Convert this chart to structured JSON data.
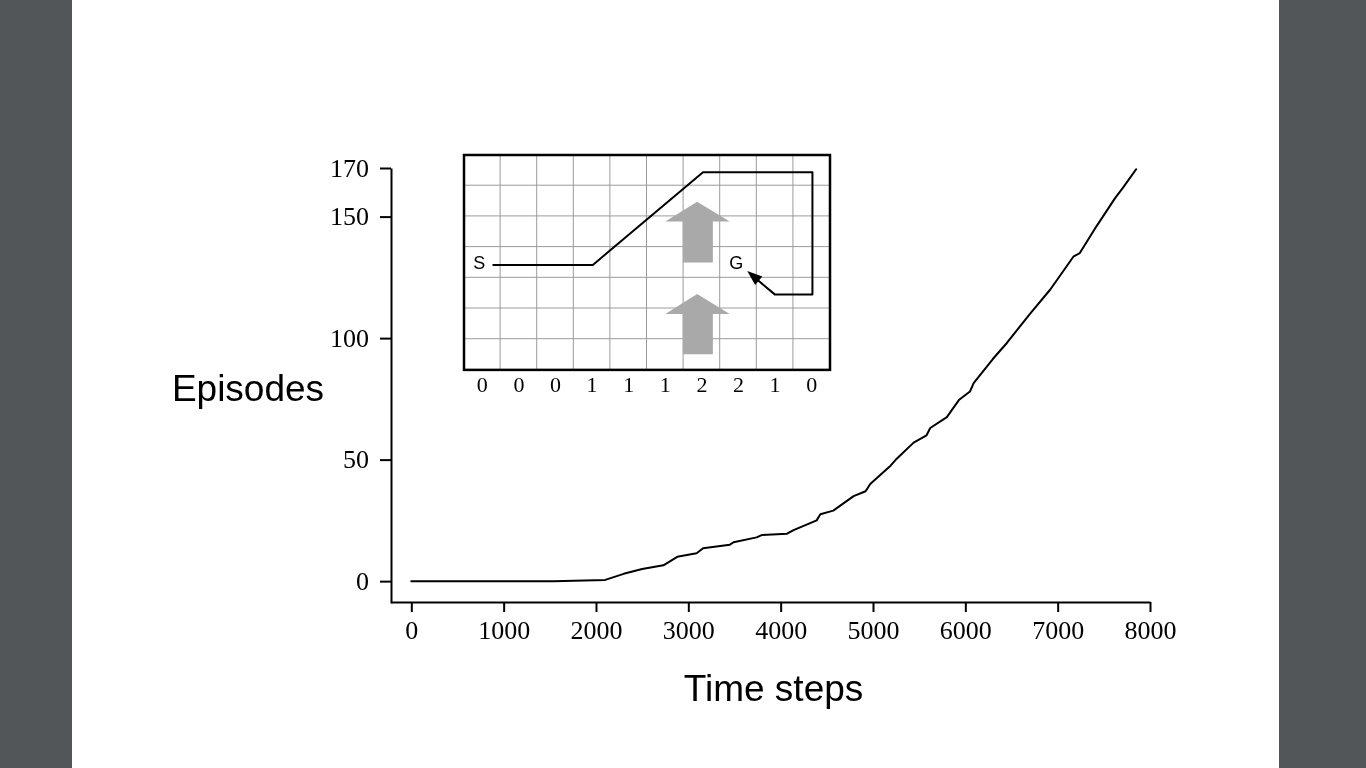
{
  "chart_data": {
    "type": "line",
    "xlabel": "Time steps",
    "ylabel": "Episodes",
    "x": [
      0,
      1540,
      2100,
      2300,
      2500,
      2730,
      2880,
      3090,
      3160,
      3450,
      3490,
      3740,
      3800,
      4070,
      4140,
      4390,
      4430,
      4570,
      4790,
      4920,
      4970,
      5190,
      5260,
      5440,
      5580,
      5620,
      5800,
      5930,
      6050,
      6090,
      6300,
      6450,
      6700,
      6920,
      7170,
      7240,
      7420,
      7620,
      7710,
      7850
    ],
    "values": [
      0,
      0,
      0.5,
      3,
      5,
      6.5,
      10,
      11.5,
      13.5,
      15,
      16,
      18,
      19,
      19.5,
      21,
      25,
      27.5,
      29,
      35,
      37,
      40,
      47.5,
      50.5,
      57,
      60,
      63,
      67.5,
      74.5,
      78,
      81.5,
      91.5,
      98,
      110,
      120,
      133.5,
      135,
      146,
      157.5,
      162,
      169.5
    ],
    "color": "#000000",
    "xlim": [
      -220,
      8000
    ],
    "ylim": [
      -9,
      170
    ],
    "xticks": [
      0,
      1000,
      2000,
      3000,
      4000,
      5000,
      6000,
      7000,
      8000
    ],
    "yticks": [
      0,
      50,
      100,
      150,
      170
    ],
    "annotations": [
      "S",
      "G",
      "0 0 0 1 1 1 2 2 1 0"
    ]
  }
}
